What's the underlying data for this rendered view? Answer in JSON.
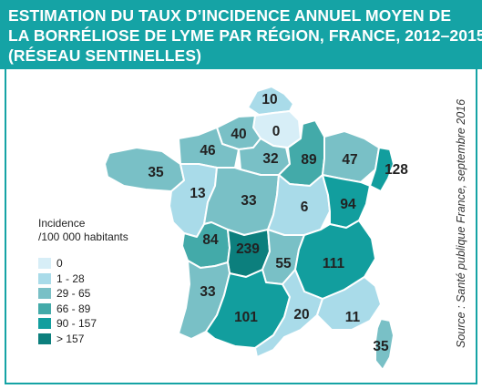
{
  "title": {
    "line1": "ESTIMATION DU TAUX D’INCIDENCE ANNUEL MOYEN DE",
    "line2": "LA BORRÉLIOSE DE LYME PAR RÉGION, FRANCE, 2012–2015",
    "line3": "(RÉSEAU SENTINELLES)"
  },
  "legend": {
    "title_line1": "Incidence",
    "title_line2": "/100 000 habitants",
    "classes": [
      {
        "label": "0",
        "color": "#d7eef7"
      },
      {
        "label": "1 - 28",
        "color": "#a9dbe9"
      },
      {
        "label": "29 - 65",
        "color": "#79c0c6"
      },
      {
        "label": "66 - 89",
        "color": "#43aaa9"
      },
      {
        "label": "90 - 157",
        "color": "#129e9e"
      },
      {
        "label": "> 157",
        "color": "#0c7f7d"
      }
    ]
  },
  "regions": [
    {
      "name": "Nord-Pas-de-Calais",
      "value": "10",
      "cls": 1
    },
    {
      "name": "Picardie",
      "value": "0",
      "cls": 0
    },
    {
      "name": "Haute-Normandie",
      "value": "40",
      "cls": 2
    },
    {
      "name": "Basse-Normandie",
      "value": "46",
      "cls": 2
    },
    {
      "name": "Bretagne",
      "value": "35",
      "cls": 2
    },
    {
      "name": "Île-de-France",
      "value": "32",
      "cls": 2
    },
    {
      "name": "Champagne-Ardenne",
      "value": "89",
      "cls": 3
    },
    {
      "name": "Lorraine",
      "value": "47",
      "cls": 2
    },
    {
      "name": "Alsace",
      "value": "128",
      "cls": 4
    },
    {
      "name": "Pays de la Loire",
      "value": "13",
      "cls": 1
    },
    {
      "name": "Centre",
      "value": "33",
      "cls": 2
    },
    {
      "name": "Bourgogne",
      "value": "6",
      "cls": 1
    },
    {
      "name": "Franche-Comté",
      "value": "94",
      "cls": 4
    },
    {
      "name": "Poitou-Charentes",
      "value": "84",
      "cls": 3
    },
    {
      "name": "Limousin",
      "value": "239",
      "cls": 5
    },
    {
      "name": "Auvergne",
      "value": "55",
      "cls": 2
    },
    {
      "name": "Rhône-Alpes",
      "value": "111",
      "cls": 4
    },
    {
      "name": "Aquitaine",
      "value": "33",
      "cls": 2
    },
    {
      "name": "Midi-Pyrénées",
      "value": "101",
      "cls": 4
    },
    {
      "name": "Languedoc-Roussillon",
      "value": "20",
      "cls": 1
    },
    {
      "name": "Provence-Alpes-Côte d'Azur",
      "value": "11",
      "cls": 1
    },
    {
      "name": "Corse",
      "value": "35",
      "cls": 2
    }
  ],
  "source": "Source : Santé publique France, septembre 2016"
}
